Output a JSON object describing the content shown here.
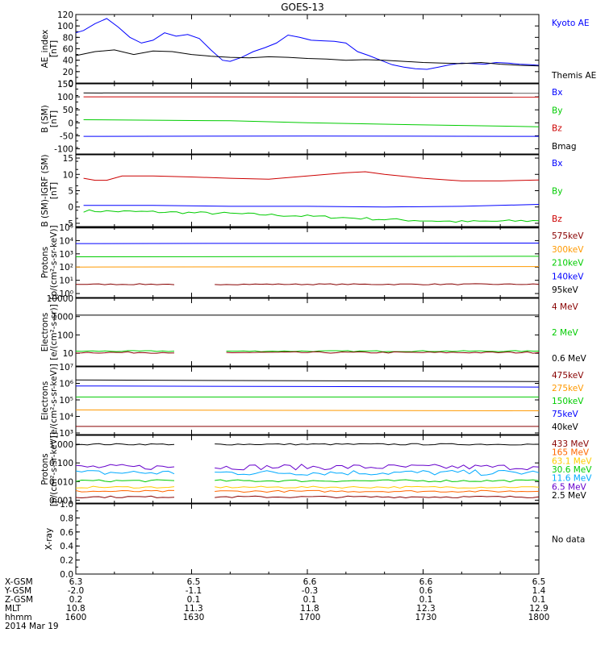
{
  "chart_data": {
    "type": "line",
    "title": "GOES-13",
    "footer": {
      "rows": [
        {
          "label": "X-GSM",
          "values": [
            "6.3",
            "6.5",
            "6.6",
            "6.6",
            "6.5"
          ]
        },
        {
          "label": "Y-GSM",
          "values": [
            "-2.0",
            "-1.1",
            "-0.3",
            "0.6",
            "1.4"
          ]
        },
        {
          "label": "Z-GSM",
          "values": [
            "0.2",
            "0.1",
            "0.1",
            "0.1",
            "0.1"
          ]
        },
        {
          "label": "MLT",
          "values": [
            "10.8",
            "11.3",
            "11.8",
            "12.3",
            "12.9"
          ]
        },
        {
          "label": "hhmm",
          "values": [
            "1600",
            "1630",
            "1700",
            "1730",
            "1800"
          ]
        }
      ],
      "date": "2014 Mar 19"
    },
    "panels": [
      {
        "ylabel": "AE_index\n[nT]",
        "scale": "linear",
        "ylim": [
          0,
          120
        ],
        "ticks": [
          "0",
          "20",
          "40",
          "60",
          "80",
          "100",
          "120"
        ],
        "tick_values": [
          0,
          20,
          40,
          60,
          80,
          100,
          120
        ],
        "legend": [
          {
            "name": "Kyoto AE",
            "color": "#0000ff"
          },
          {
            "name": "Themis AE",
            "color": "#000000"
          }
        ],
        "series": [
          {
            "color": "#0000ff",
            "x": [
              1600,
              1602,
              1605,
              1608,
              1611,
              1614,
              1617,
              1620,
              1623,
              1626,
              1629,
              1632,
              1635,
              1638,
              1640,
              1643,
              1646,
              1649,
              1652,
              1655,
              1658,
              1701,
              1704,
              1707,
              1710,
              1713,
              1716,
              1719,
              1722,
              1725,
              1728,
              1731,
              1734,
              1737,
              1740,
              1743,
              1746,
              1749,
              1752,
              1755,
              1758,
              1800
            ],
            "y": [
              88,
              92,
              104,
              113,
              98,
              80,
              70,
              75,
              88,
              82,
              85,
              78,
              58,
              40,
              38,
              45,
              55,
              62,
              70,
              84,
              80,
              75,
              74,
              73,
              70,
              55,
              48,
              40,
              32,
              28,
              25,
              24,
              28,
              32,
              35,
              34,
              33,
              36,
              35,
              33,
              32,
              31
            ]
          },
          {
            "color": "#000000",
            "x": [
              1600,
              1605,
              1610,
              1615,
              1620,
              1625,
              1630,
              1635,
              1640,
              1645,
              1650,
              1655,
              1660,
              1705,
              1710,
              1715,
              1720,
              1725,
              1730,
              1735,
              1740,
              1745,
              1750,
              1755,
              1800
            ],
            "y": [
              48,
              55,
              58,
              50,
              56,
              55,
              50,
              47,
              45,
              44,
              46,
              45,
              43,
              42,
              40,
              41,
              40,
              38,
              36,
              35,
              34,
              36,
              33,
              31,
              30
            ]
          }
        ]
      },
      {
        "ylabel": "B (SM)\n[nT]",
        "scale": "linear",
        "ylim": [
          -120,
          150
        ],
        "ticks": [
          "-100",
          "-50",
          "0",
          "50",
          "100",
          "150"
        ],
        "tick_values": [
          -100,
          -50,
          0,
          50,
          100,
          150
        ],
        "legend": [
          {
            "name": "Bx",
            "color": "#0000ff"
          },
          {
            "name": "By",
            "color": "#00cc00"
          },
          {
            "name": "Bz",
            "color": "#cc0000"
          },
          {
            "name": "Bmag",
            "color": "#000000"
          }
        ],
        "series": [
          {
            "color": "#000000",
            "x": [
              1602,
              1800
            ],
            "y": [
              115,
              114
            ]
          },
          {
            "color": "#cc0000",
            "x": [
              1602,
              1800
            ],
            "y": [
              100,
              99
            ]
          },
          {
            "color": "#00cc00",
            "x": [
              1602,
              1640,
              1700,
              1730,
              1800
            ],
            "y": [
              12,
              8,
              0,
              -8,
              -15
            ]
          },
          {
            "color": "#0000ff",
            "x": [
              1602,
              1700,
              1800
            ],
            "y": [
              -52,
              -51,
              -52
            ]
          }
        ]
      },
      {
        "ylabel": "B (SM)-IGRF (SM)\n[nT]",
        "scale": "linear",
        "ylim": [
          -6,
          16
        ],
        "ticks": [
          "-5",
          "0",
          "5",
          "10",
          "15"
        ],
        "tick_values": [
          -5,
          0,
          5,
          10,
          15
        ],
        "legend": [
          {
            "name": "Bx",
            "color": "#0000ff"
          },
          {
            "name": "By",
            "color": "#00cc00"
          },
          {
            "name": "Bz",
            "color": "#cc0000"
          }
        ],
        "series": [
          {
            "color": "#cc0000",
            "x": [
              1602,
              1605,
              1608,
              1612,
              1620,
              1630,
              1640,
              1650,
              1700,
              1710,
              1715,
              1720,
              1730,
              1740,
              1750,
              1800
            ],
            "y": [
              8.8,
              8.2,
              8.2,
              9.5,
              9.5,
              9.2,
              8.8,
              8.5,
              9.5,
              10.5,
              10.8,
              10,
              8.8,
              8.0,
              8.0,
              8.3
            ]
          },
          {
            "color": "#0000ff",
            "x": [
              1602,
              1620,
              1640,
              1700,
              1720,
              1740,
              1800
            ],
            "y": [
              0.5,
              0.5,
              0.2,
              0.2,
              0,
              0.2,
              0.8
            ]
          },
          {
            "color": "#00cc00",
            "x": [
              1602,
              1620,
              1640,
              1700,
              1720,
              1740,
              1800
            ],
            "y": [
              -1.2,
              -1.5,
              -2,
              -2.8,
              -3.8,
              -4.5,
              -4.2
            ],
            "noise": 0.4
          }
        ]
      },
      {
        "ylabel": "Protons\n[p/(cm²-s-sr-keV)]",
        "scale": "log",
        "ylim": [
          0.5,
          100000
        ],
        "ticks": [
          "10⁰",
          "10¹",
          "10²",
          "10³",
          "10⁴",
          "10⁵"
        ],
        "tick_values": [
          1,
          10,
          100,
          1000,
          10000,
          100000
        ],
        "legend": [
          {
            "name": "575keV",
            "color": "#880000"
          },
          {
            "name": "300keV",
            "color": "#ff9900"
          },
          {
            "name": "210keV",
            "color": "#00cc00"
          },
          {
            "name": "140keV",
            "color": "#0000ff"
          },
          {
            "name": "95keV",
            "color": "#000000"
          }
        ],
        "gap": [
          1626,
          1636
        ],
        "series": [
          {
            "color": "#000000",
            "x": [
              1600,
              1800
            ],
            "y": [
              90000,
              90000
            ]
          },
          {
            "color": "#0000ff",
            "x": [
              1600,
              1800
            ],
            "y": [
              6000,
              6500
            ]
          },
          {
            "color": "#00cc00",
            "x": [
              1600,
              1800
            ],
            "y": [
              600,
              650
            ]
          },
          {
            "color": "#ff9900",
            "x": [
              1600,
              1800
            ],
            "y": [
              100,
              110
            ]
          },
          {
            "color": "#880000",
            "x": [
              1600,
              1800
            ],
            "y": [
              5,
              5
            ],
            "noise": 0.08
          }
        ]
      },
      {
        "ylabel": "Electrons\n[e/(cm²-s-sr)]",
        "scale": "log",
        "ylim": [
          2,
          10000
        ],
        "ticks": [
          "10",
          "100",
          "1000",
          "10000"
        ],
        "tick_values": [
          10,
          100,
          1000,
          10000
        ],
        "legend": [
          {
            "name": "4 MeV",
            "color": "#880000"
          },
          {
            "name": "2 MeV",
            "color": "#00cc00"
          },
          {
            "name": "0.6 MeV",
            "color": "#000000"
          }
        ],
        "gap": [
          1626,
          1639
        ],
        "series": [
          {
            "color": "#000000",
            "x": [
              1600,
              1800
            ],
            "y": [
              1200,
              1200
            ]
          },
          {
            "color": "#00cc00",
            "x": [
              1600,
              1800
            ],
            "y": [
              13,
              13
            ],
            "noise": 0.06
          },
          {
            "color": "#880000",
            "x": [
              1600,
              1800
            ],
            "y": [
              11,
              11
            ],
            "noise": 0.08
          }
        ]
      },
      {
        "ylabel": "Electrons\n[e/(cm²-s-sr-keV)]",
        "scale": "log",
        "ylim": [
          800,
          10000000
        ],
        "ticks": [
          "10³",
          "10⁴",
          "10⁵",
          "10⁶",
          "10⁷"
        ],
        "tick_values": [
          1000,
          10000,
          100000,
          1000000,
          10000000
        ],
        "legend": [
          {
            "name": "475keV",
            "color": "#880000"
          },
          {
            "name": "275keV",
            "color": "#ff9900"
          },
          {
            "name": "150keV",
            "color": "#00cc00"
          },
          {
            "name": "75keV",
            "color": "#0000ff"
          },
          {
            "name": "40keV",
            "color": "#000000"
          }
        ],
        "gap": [
          1626,
          1636
        ],
        "series": [
          {
            "color": "#000000",
            "x": [
              1600,
              1800
            ],
            "y": [
              1600000,
              1300000
            ]
          },
          {
            "color": "#0000ff",
            "x": [
              1600,
              1800
            ],
            "y": [
              700000,
              600000
            ]
          },
          {
            "color": "#00cc00",
            "x": [
              1600,
              1800
            ],
            "y": [
              150000,
              150000
            ]
          },
          {
            "color": "#ff9900",
            "x": [
              1600,
              1800
            ],
            "y": [
              25000,
              22000
            ]
          },
          {
            "color": "#880000",
            "x": [
              1600,
              1800
            ],
            "y": [
              2500,
              2500
            ]
          }
        ]
      },
      {
        "ylabel": "Protons\n[p/(cm²-s-sr-keV)]",
        "scale": "log",
        "ylim": [
          0.0007,
          3
        ],
        "ticks": [
          "0.001",
          "0.010",
          "0.100",
          "1.000"
        ],
        "tick_values": [
          0.001,
          0.01,
          0.1,
          1
        ],
        "legend": [
          {
            "name": "433 MeV",
            "color": "#880000"
          },
          {
            "name": "165 MeV",
            "color": "#ff6600"
          },
          {
            "name": "63.1 MeV",
            "color": "#ffcc00"
          },
          {
            "name": "30.6 MeV",
            "color": "#00cc00"
          },
          {
            "name": "11.6 MeV",
            "color": "#00aaff"
          },
          {
            "name": "6.5 MeV",
            "color": "#6600cc"
          },
          {
            "name": "2.5 MeV",
            "color": "#000000"
          }
        ],
        "gap": [
          1626,
          1636
        ],
        "series": [
          {
            "color": "#000000",
            "x": [
              1600,
              1800
            ],
            "y": [
              1.0,
              1.0
            ],
            "noise": 0.08
          },
          {
            "color": "#6600cc",
            "x": [
              1600,
              1800
            ],
            "y": [
              0.06,
              0.06
            ],
            "noise": 0.3
          },
          {
            "color": "#00aaff",
            "x": [
              1600,
              1800
            ],
            "y": [
              0.03,
              0.03
            ],
            "noise": 0.3
          },
          {
            "color": "#00cc00",
            "x": [
              1600,
              1800
            ],
            "y": [
              0.011,
              0.011
            ],
            "noise": 0.12
          },
          {
            "color": "#ffcc00",
            "x": [
              1600,
              1800
            ],
            "y": [
              0.005,
              0.005
            ],
            "noise": 0.1
          },
          {
            "color": "#ff6600",
            "x": [
              1600,
              1800
            ],
            "y": [
              0.003,
              0.003
            ],
            "noise": 0.1
          },
          {
            "color": "#880000",
            "x": [
              1600,
              1800
            ],
            "y": [
              0.0015,
              0.0015
            ],
            "noise": 0.1
          }
        ]
      },
      {
        "ylabel": "X-ray",
        "scale": "linear",
        "ylim": [
          0,
          1.0
        ],
        "ticks": [
          "0.0",
          "0.2",
          "0.4",
          "0.6",
          "0.8",
          "1.0"
        ],
        "tick_values": [
          0,
          0.2,
          0.4,
          0.6,
          0.8,
          1.0
        ],
        "legend": [
          {
            "name": "No data",
            "color": "#000000"
          }
        ],
        "series": []
      }
    ]
  }
}
